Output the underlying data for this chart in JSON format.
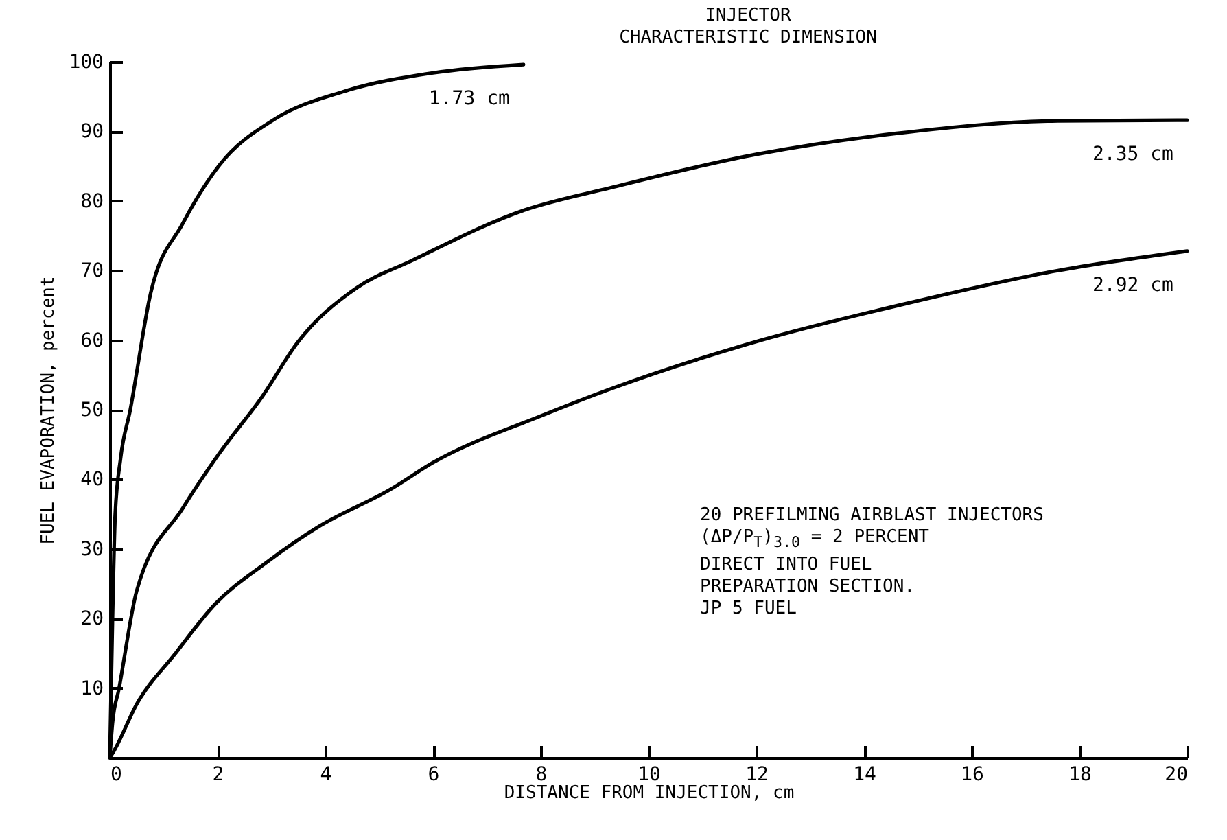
{
  "chart_data": {
    "type": "line",
    "xlabel": "DISTANCE FROM INJECTION, cm",
    "ylabel": "FUEL EVAPORATION, percent",
    "annotations": [
      "INJECTOR\nCHARACTERISTIC DIMENSION",
      "20 PREFILMING AIRBLAST INJECTORS\n(ΔP/P$_{T}$)$_{3.0}$ = 2 PERCENT\nDIRECT INTO FUEL\nPREPARATION SECTION.\nJP 5 FUEL"
    ],
    "xlim": [
      0,
      20
    ],
    "xticks": [
      0,
      2,
      4,
      6,
      8,
      10,
      12,
      14,
      16,
      18,
      20
    ],
    "ylim": [
      0,
      100
    ],
    "yticks": [
      10,
      20,
      30,
      40,
      50,
      60,
      70,
      80,
      90,
      100
    ],
    "grid": false,
    "marker": "none",
    "line_style": "solid",
    "series": [
      {
        "name": "1.73 cm",
        "color": "#000000",
        "x": [
          0,
          0.05,
          0.1,
          0.2,
          0.38,
          0.76,
          1.35,
          2.04,
          3.05,
          4.33,
          6.0,
          7.68
        ],
        "values": [
          0,
          20,
          35,
          43,
          50,
          66.8,
          76.7,
          85.2,
          91.7,
          95.7,
          98.4,
          99.6
        ]
      },
      {
        "name": "2.35 cm",
        "color": "#000000",
        "x": [
          0,
          0.05,
          0.17,
          0.5,
          1.36,
          2.04,
          2.84,
          3.48,
          4.58,
          5.6,
          7.7,
          9.3,
          12.0,
          14.6,
          17.6,
          20
        ],
        "values": [
          0,
          5,
          9.9,
          24,
          35.9,
          43.8,
          52,
          59.6,
          67.5,
          71.4,
          78.7,
          81.9,
          86.7,
          89.7,
          91.5,
          91.6
        ]
      },
      {
        "name": "2.92 cm",
        "color": "#000000",
        "x": [
          0,
          0.08,
          0.5,
          1.2,
          1.96,
          2.9,
          3.9,
          5.2,
          6.0,
          8.0,
          9.3,
          12.1,
          14.7,
          17.6,
          20
        ],
        "values": [
          0,
          1,
          7.7,
          14.8,
          22.1,
          28,
          33.3,
          38.5,
          42.4,
          49.1,
          53,
          60,
          65.1,
          70,
          72.8
        ]
      }
    ]
  }
}
